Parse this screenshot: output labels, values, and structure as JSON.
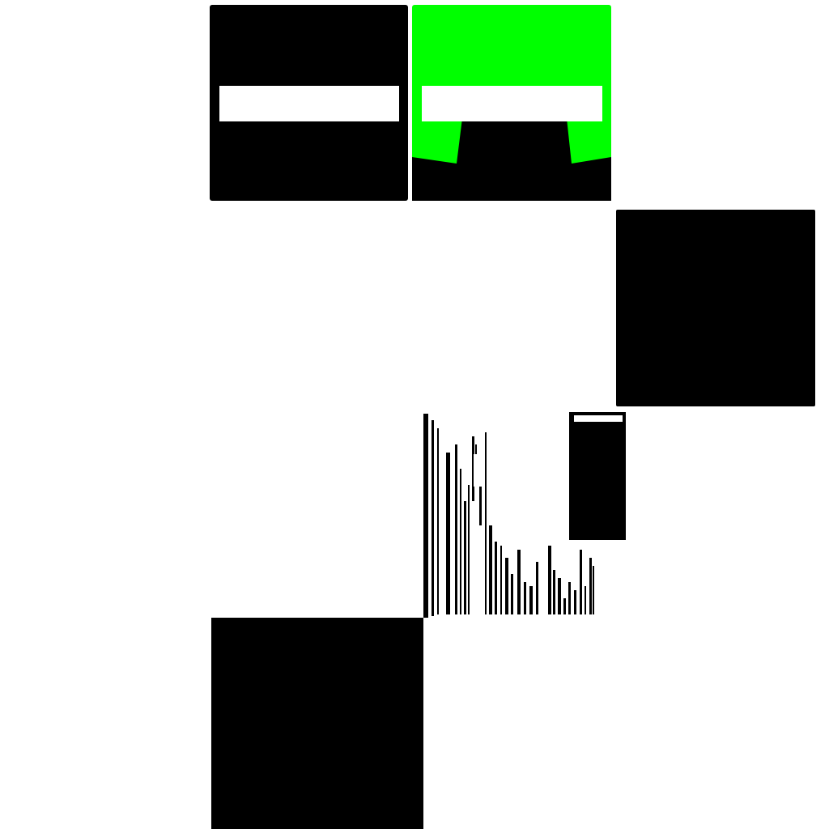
{
  "colors": {
    "background": "#ffffff",
    "tile_dark": "#000000",
    "tile_green": "#00ff00",
    "bar_light": "#ffffff"
  },
  "tiles": [
    {
      "name": "top-left-tile",
      "color": "#000000",
      "has_bar": true
    },
    {
      "name": "top-right-tile",
      "color": "#00ff00",
      "has_bar": true,
      "has_notch": true
    },
    {
      "name": "mid-right-tile",
      "color": "#000000"
    },
    {
      "name": "bottom-left-tile",
      "color": "#000000"
    },
    {
      "name": "barcode-fragment-tile",
      "pattern": "vertical-stripes"
    }
  ]
}
